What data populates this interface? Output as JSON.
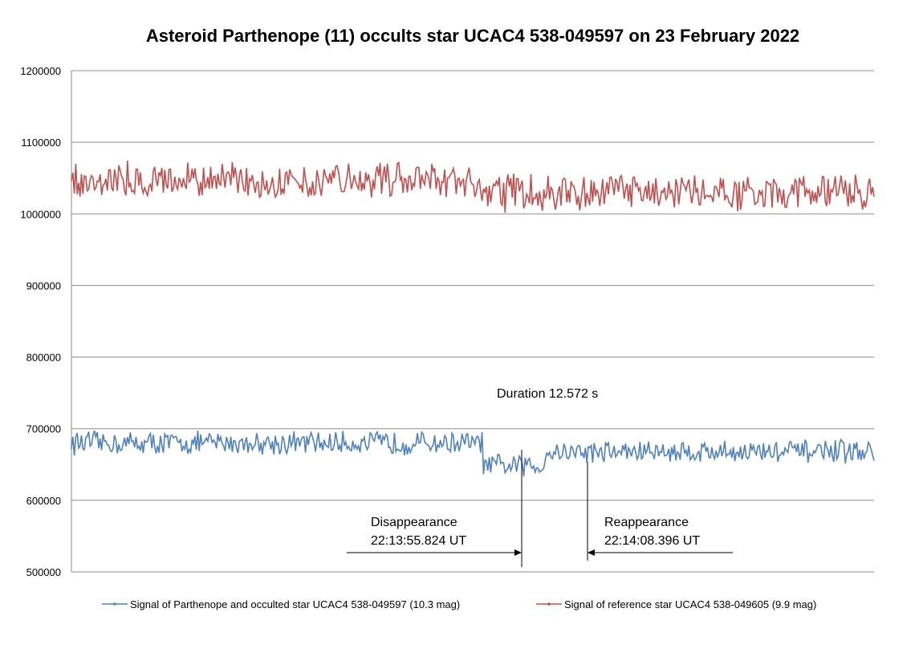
{
  "chart_data": {
    "type": "line",
    "title": "Asteroid Parthenope (11) occults star UCAC4 538-049597 on 23 February 2022",
    "xlabel": "",
    "ylabel": "",
    "ylim": [
      500000,
      1200000
    ],
    "yticks": [
      "1200000",
      "1100000",
      "1000000",
      "900000",
      "800000",
      "700000",
      "600000",
      "500000"
    ],
    "grid": true,
    "legend": "bottom",
    "series": [
      {
        "name": "Signal of Parthenope and occulted star UCAC4 538-049597 (10.3 mag)",
        "color": "#4f81bd",
        "segments": [
          {
            "level": 680000,
            "from": 0,
            "to": 0.513
          },
          {
            "level": 648000,
            "from": 0.513,
            "to": 0.59
          },
          {
            "level": 668000,
            "from": 0.59,
            "to": 1.0
          }
        ]
      },
      {
        "name": "Signal of reference star UCAC4 538-049605 (9.9 mag)",
        "color": "#c0504d",
        "segments": [
          {
            "level": 1048000,
            "from": 0,
            "to": 0.5
          },
          {
            "level": 1030000,
            "from": 0.5,
            "to": 1.0
          }
        ]
      }
    ],
    "annotations": {
      "duration": "Duration 12.572 s",
      "disappearance_label": "Disappearance",
      "disappearance_time": "22:13:55.824 UT",
      "reappearance_label": "Reappearance",
      "reappearance_time": "22:14:08.396 UT"
    }
  }
}
